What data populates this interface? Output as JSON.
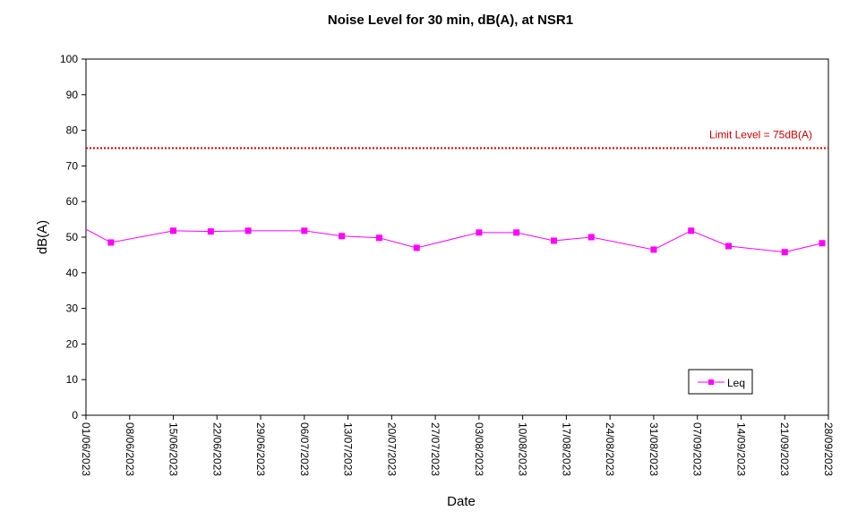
{
  "chart_data": {
    "type": "line",
    "title": "Noise Level for 30 min, dB(A), at NSR1",
    "xlabel": "Date",
    "ylabel": "dB(A)",
    "ylim": [
      0,
      100
    ],
    "yticks": [
      0,
      10,
      20,
      30,
      40,
      50,
      60,
      70,
      80,
      90,
      100
    ],
    "xlim": [
      "2023-06-01",
      "2023-09-28"
    ],
    "xtick_labels": [
      "01/06/2023",
      "08/06/2023",
      "15/06/2023",
      "22/06/2023",
      "29/06/2023",
      "06/07/2023",
      "13/07/2023",
      "20/07/2023",
      "27/07/2023",
      "03/08/2023",
      "10/08/2023",
      "17/08/2023",
      "24/08/2023",
      "31/08/2023",
      "07/09/2023",
      "14/09/2023",
      "21/09/2023",
      "28/09/2023"
    ],
    "grid": false,
    "legend_position": "bottom-right",
    "series": [
      {
        "name": "Leq",
        "color": "#ff00ff",
        "marker": "square",
        "x": [
          "2023-05-31",
          "2023-06-05",
          "2023-06-15",
          "2023-06-21",
          "2023-06-27",
          "2023-07-06",
          "2023-07-12",
          "2023-07-18",
          "2023-07-24",
          "2023-08-03",
          "2023-08-09",
          "2023-08-15",
          "2023-08-21",
          "2023-08-31",
          "2023-09-06",
          "2023-09-12",
          "2023-09-21",
          "2023-09-27"
        ],
        "y": [
          52.2,
          48.5,
          51.8,
          51.6,
          51.8,
          51.8,
          50.3,
          49.8,
          47.0,
          51.3,
          51.3,
          49.0,
          50.0,
          46.5,
          51.8,
          47.5,
          45.8,
          48.3
        ],
        "marker_shown": [
          false,
          true,
          true,
          true,
          true,
          true,
          true,
          true,
          true,
          true,
          true,
          true,
          true,
          true,
          true,
          true,
          true,
          true
        ]
      }
    ],
    "reference_line": {
      "label": "Limit Level  = 75dB(A)",
      "value": 75,
      "color": "#cc0000",
      "style": "dotted"
    }
  }
}
